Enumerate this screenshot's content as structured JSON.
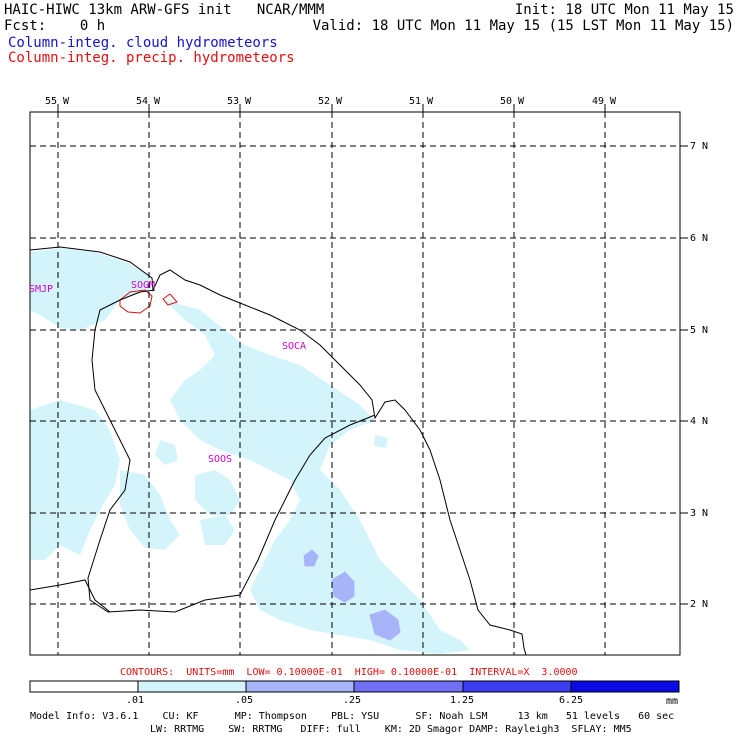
{
  "header": {
    "left_line1": "HAIC-HIWC 13km ARW-GFS init   NCAR/MMM",
    "left_line2": "Fcst:    0 h",
    "init": "Init: 18 UTC Mon 11 May 15",
    "valid": "Valid: 18 UTC Mon 11 May 15 (15 LST Mon 11 May 15)",
    "legend_cloud": "Column-integ. cloud hydrometeors",
    "legend_precip": "Column-integ. precip. hydrometeors"
  },
  "map": {
    "lon_labels": [
      "55 W",
      "54 W",
      "53 W",
      "52 W",
      "51 W",
      "50 W",
      "49 W"
    ],
    "lat_labels": [
      "7 N",
      "6 N",
      "5 N",
      "4 N",
      "3 N",
      "2 N"
    ],
    "stations": [
      "SMJP",
      "SOCA",
      "SOOS",
      "SOGM"
    ]
  },
  "contours_text": "CONTOURS:  UNITS=mm  LOW= 0.10000E-01  HIGH= 0.10000E-01  INTERVAL=X  3.0000",
  "colorbar": {
    "ticks": [
      ".01",
      ".05",
      ".25",
      "1.25",
      "6.25"
    ],
    "unit": "mm",
    "colors": [
      "#ffffff",
      "#d4f4fc",
      "#a8b4f8",
      "#7070f4",
      "#3c3cf0",
      "#0a0ae6"
    ]
  },
  "model_info": {
    "line1": "Model Info: V3.6.1    CU: KF      MP: Thompson    PBL: YSU      SF: Noah LSM     13 km   51 levels   60 sec",
    "line2": "LW: RRTMG    SW: RRTMG   DIFF: full    KM: 2D Smagor DAMP: Rayleigh3  SFLAY: MM5"
  }
}
